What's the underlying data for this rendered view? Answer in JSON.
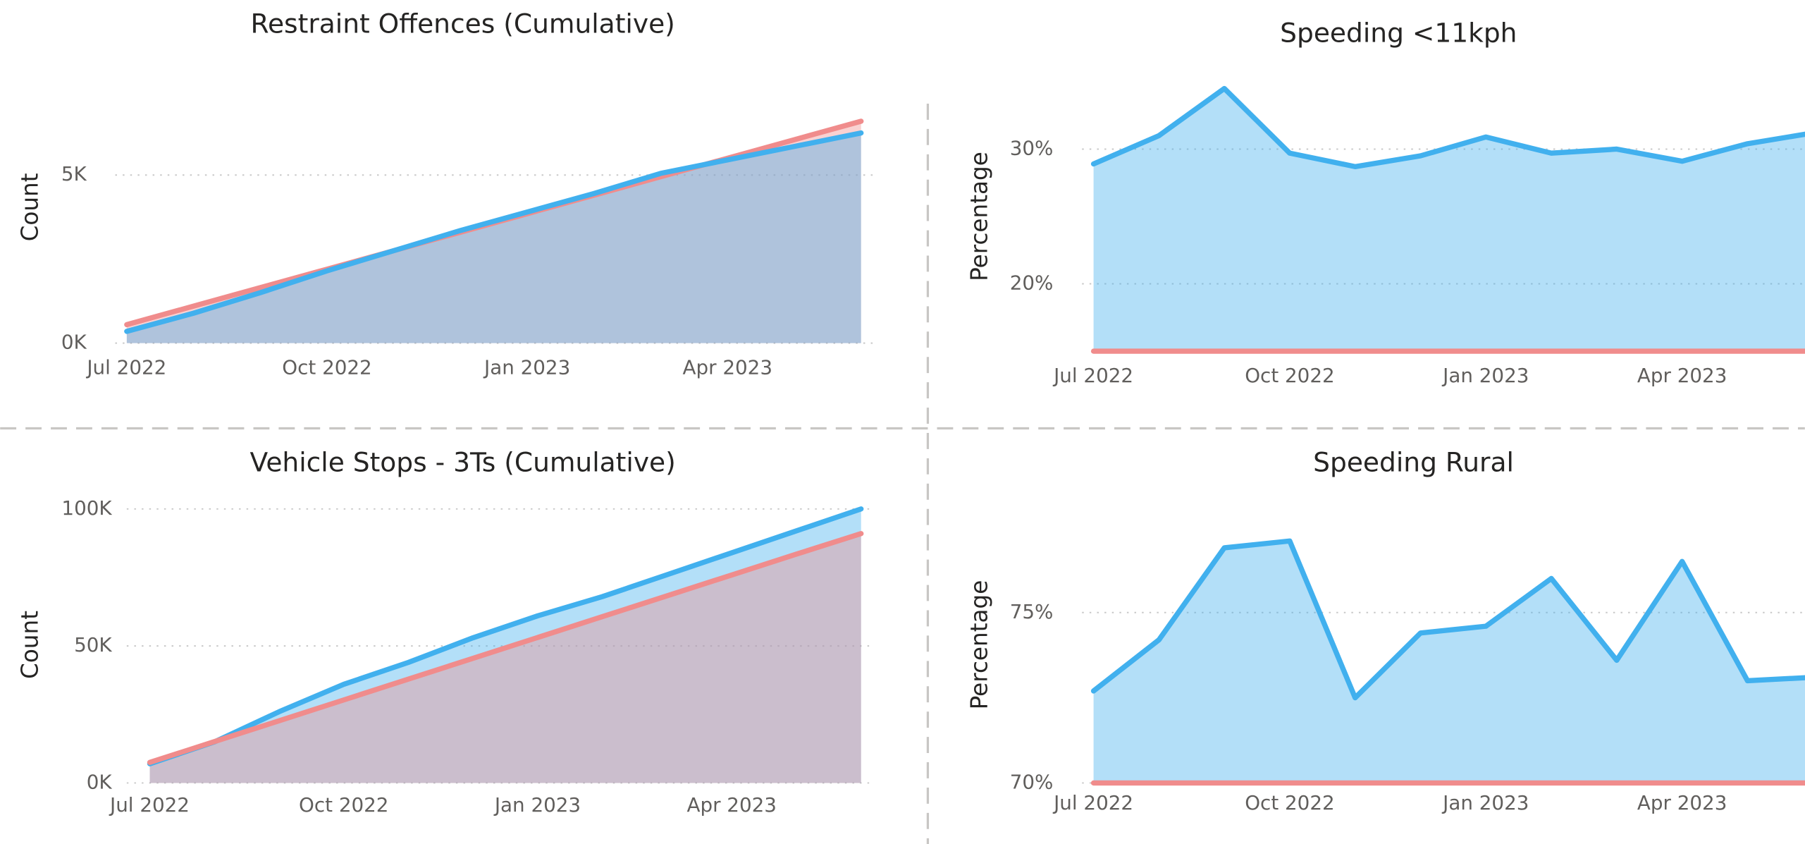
{
  "chart_data": [
    {
      "type": "area",
      "title": "Restraint Offences (Cumulative)",
      "y_label": "Count",
      "categories": [
        "Jul 2022",
        null,
        null,
        "Oct 2022",
        null,
        null,
        "Jan 2023",
        null,
        null,
        "Apr 2023",
        null,
        null
      ],
      "series": [
        {
          "color": "#f08c8c",
          "values": [
            550,
            1100,
            1650,
            2200,
            2750,
            3300,
            3850,
            4400,
            4950,
            5500,
            6050,
            6600
          ]
        },
        {
          "color": "#41b0ee",
          "values": [
            350,
            890,
            1500,
            2150,
            2750,
            3350,
            3900,
            4450,
            5050,
            5450,
            5850,
            6250
          ]
        }
      ],
      "ylim": [
        0,
        7000
      ],
      "yticks": [
        {
          "value": 0,
          "label": "0K"
        },
        {
          "value": 5000,
          "label": "5K"
        }
      ],
      "grid": true
    },
    {
      "type": "area",
      "title": "Vehicle Stops - 3Ts (Cumulative)",
      "y_label": "Count",
      "categories": [
        "Jul 2022",
        null,
        null,
        "Oct 2022",
        null,
        null,
        "Jan 2023",
        null,
        null,
        "Apr 2023",
        null,
        null
      ],
      "series": [
        {
          "color": "#41b0ee",
          "values": [
            7000,
            15000,
            26000,
            36000,
            44000,
            53000,
            61000,
            68000,
            76000,
            84000,
            92000,
            100000
          ]
        },
        {
          "color": "#f08c8c",
          "values": [
            7500,
            15100,
            22700,
            30300,
            37900,
            45500,
            53100,
            60700,
            68300,
            75900,
            83500,
            91000
          ]
        }
      ],
      "ylim": [
        0,
        105000
      ],
      "yticks": [
        {
          "value": 0,
          "label": "0K"
        },
        {
          "value": 50000,
          "label": "50K"
        },
        {
          "value": 100000,
          "label": "100K"
        }
      ],
      "grid": true
    },
    {
      "type": "area",
      "title": "Speeding <11kph",
      "y_label": "Percentage",
      "categories": [
        "Jul 2022",
        null,
        null,
        "Oct 2022",
        null,
        null,
        "Jan 2023",
        null,
        null,
        "Apr 2023",
        null,
        null
      ],
      "series": [
        {
          "color": "#41b0ee",
          "values": [
            28.9,
            31.0,
            34.5,
            29.7,
            28.7,
            29.5,
            30.9,
            29.7,
            30.0,
            29.1,
            30.4,
            31.2
          ]
        },
        {
          "color": "#f08c8c",
          "values": [
            15,
            15,
            15,
            15,
            15,
            15,
            15,
            15,
            15,
            15,
            15,
            15
          ]
        }
      ],
      "ylim": [
        15,
        36
      ],
      "yticks": [
        {
          "value": 20,
          "label": "20%"
        },
        {
          "value": 30,
          "label": "30%"
        }
      ],
      "grid": true
    },
    {
      "type": "area",
      "title": "Speeding Rural",
      "y_label": "Percentage",
      "categories": [
        "Jul 2022",
        null,
        null,
        "Oct 2022",
        null,
        null,
        "Jan 2023",
        null,
        null,
        "Apr 2023",
        null,
        null
      ],
      "series": [
        {
          "color": "#41b0ee",
          "values": [
            72.7,
            74.2,
            76.9,
            77.1,
            72.5,
            74.4,
            74.6,
            76.0,
            73.6,
            76.5,
            73.0,
            73.1
          ]
        },
        {
          "color": "#f08c8c",
          "values": [
            70,
            70,
            70,
            70,
            70,
            70,
            70,
            70,
            70,
            70,
            70,
            70
          ]
        }
      ],
      "ylim": [
        70,
        78
      ],
      "yticks": [
        {
          "value": 70,
          "label": "70%"
        },
        {
          "value": 75,
          "label": "75%"
        }
      ],
      "grid": true
    }
  ]
}
